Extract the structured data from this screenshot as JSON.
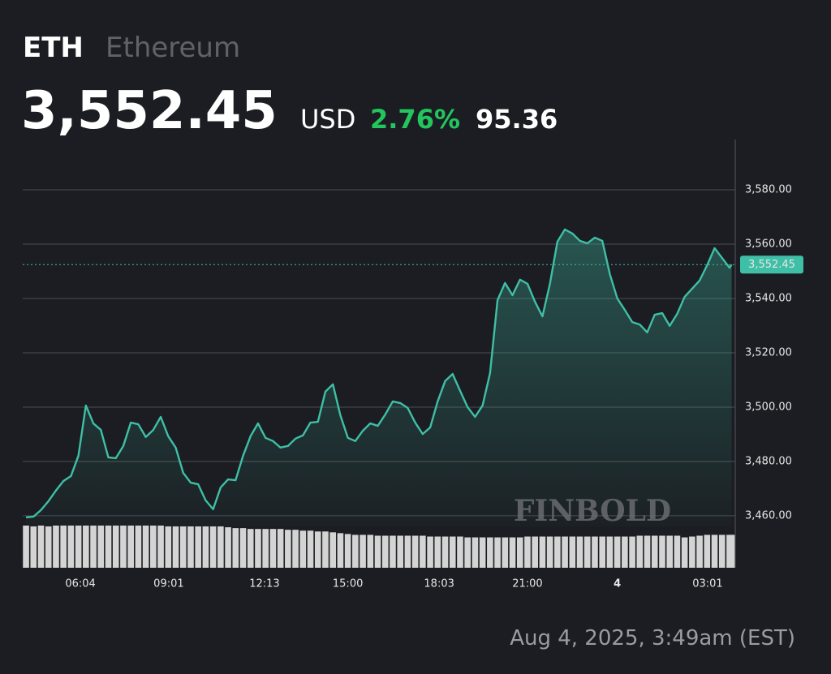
{
  "header": {
    "symbol": "ETH",
    "name": "Ethereum",
    "price": "3,552.45",
    "currency": "USD",
    "change_pct": "2.76%",
    "change": "95.36"
  },
  "timestamp": "Aug 4, 2025, 3:49am (EST)",
  "watermark": "FINBOLD",
  "chart_data": {
    "type": "line",
    "xlim": [
      4.14,
      27.94
    ],
    "ylim": [
      3455.8,
      3598.5
    ],
    "yticks": [
      {
        "value": 3460,
        "label": "3,460.00"
      },
      {
        "value": 3480,
        "label": "3,480.00"
      },
      {
        "value": 3500,
        "label": "3,500.00"
      },
      {
        "value": 3520,
        "label": "3,520.00"
      },
      {
        "value": 3540,
        "label": "3,540.00"
      },
      {
        "value": 3560,
        "label": "3,560.00"
      },
      {
        "value": 3580,
        "label": "3,580.00"
      }
    ],
    "xticks": [
      {
        "value": 6.067,
        "label": "06:04"
      },
      {
        "value": 9.017,
        "label": "09:01"
      },
      {
        "value": 12.217,
        "label": "12:13"
      },
      {
        "value": 15,
        "label": "15:00"
      },
      {
        "value": 18.05,
        "label": "18:03"
      },
      {
        "value": 21,
        "label": "21:00"
      },
      {
        "value": 24,
        "label": "4"
      },
      {
        "value": 27.017,
        "label": "03:01"
      }
    ],
    "grid": true,
    "price_line": {
      "value": 3552.45,
      "label": "3,552.45"
    },
    "series": [
      {
        "color": "#3fbfa6",
        "x": [
          4.25,
          4.5,
          4.75,
          5,
          5.25,
          5.5,
          5.75,
          6,
          6.25,
          6.5,
          6.75,
          7,
          7.25,
          7.5,
          7.75,
          8,
          8.25,
          8.5,
          8.75,
          9,
          9.25,
          9.5,
          9.75,
          10,
          10.25,
          10.5,
          10.75,
          11,
          11.25,
          11.5,
          11.75,
          12,
          12.25,
          12.5,
          12.75,
          13,
          13.25,
          13.5,
          13.75,
          14,
          14.25,
          14.5,
          14.75,
          15,
          15.25,
          15.5,
          15.75,
          16,
          16.25,
          16.5,
          16.75,
          17,
          17.25,
          17.5,
          17.75,
          18,
          18.25,
          18.5,
          18.75,
          19,
          19.25,
          19.5,
          19.75,
          20,
          20.25,
          20.5,
          20.75,
          21,
          21.25,
          21.5,
          21.75,
          22,
          22.25,
          22.5,
          22.75,
          23,
          23.25,
          23.5,
          23.75,
          24,
          24.25,
          24.5,
          24.75,
          25,
          25.25,
          25.5,
          25.75,
          26,
          26.25,
          26.5,
          26.75,
          27,
          27.25,
          27.5,
          27.75,
          27.82
        ],
        "values": [
          3459.4,
          3459.7,
          3462.1,
          3465.4,
          3469.3,
          3472.8,
          3474.6,
          3482.1,
          3500.6,
          3494.0,
          3491.6,
          3481.5,
          3481.2,
          3485.7,
          3494.3,
          3493.7,
          3489.0,
          3491.6,
          3496.4,
          3489.3,
          3485.1,
          3475.8,
          3472.2,
          3471.6,
          3465.7,
          3462.4,
          3470.4,
          3473.4,
          3473.1,
          3482.1,
          3489.3,
          3494.0,
          3488.7,
          3487.5,
          3485.1,
          3485.7,
          3488.4,
          3489.6,
          3494.3,
          3494.6,
          3505.7,
          3508.4,
          3497.0,
          3488.7,
          3487.5,
          3491.3,
          3494.0,
          3493.1,
          3497.3,
          3502.1,
          3501.5,
          3499.7,
          3494.3,
          3490.1,
          3492.5,
          3502.1,
          3509.6,
          3512.2,
          3506.0,
          3500.0,
          3496.4,
          3500.6,
          3512.5,
          3539.4,
          3545.7,
          3541.2,
          3546.9,
          3545.4,
          3538.8,
          3533.4,
          3545.4,
          3560.9,
          3565.4,
          3563.9,
          3561.2,
          3560.3,
          3562.4,
          3561.2,
          3549.0,
          3540.0,
          3535.8,
          3531.3,
          3530.4,
          3527.5,
          3534.0,
          3534.6,
          3529.9,
          3534.3,
          3540.6,
          3543.6,
          3546.6,
          3552.2,
          3558.5,
          3554.9,
          3551.3,
          3552.45
        ]
      }
    ],
    "volume": {
      "color": "#d4d4d4",
      "values": [
        50,
        49,
        50,
        49,
        50,
        50,
        50,
        50,
        50,
        50,
        50,
        50,
        50,
        50,
        50,
        50,
        50,
        50,
        50,
        49,
        49,
        49,
        49,
        49,
        49,
        49,
        49,
        48,
        47,
        47,
        46,
        46,
        46,
        46,
        46,
        45,
        45,
        44,
        44,
        43,
        43,
        42,
        41,
        40,
        39,
        39,
        39,
        38,
        38,
        38,
        38,
        38,
        38,
        38,
        37,
        37,
        37,
        37,
        37,
        36,
        36,
        36,
        36,
        36,
        36,
        36,
        36,
        37,
        37,
        37,
        37,
        37,
        37,
        37,
        37,
        37,
        37,
        37,
        37,
        37,
        37,
        37,
        38,
        38,
        38,
        38,
        38,
        38,
        36,
        37,
        38,
        39,
        39,
        39,
        39,
        39
      ]
    }
  }
}
